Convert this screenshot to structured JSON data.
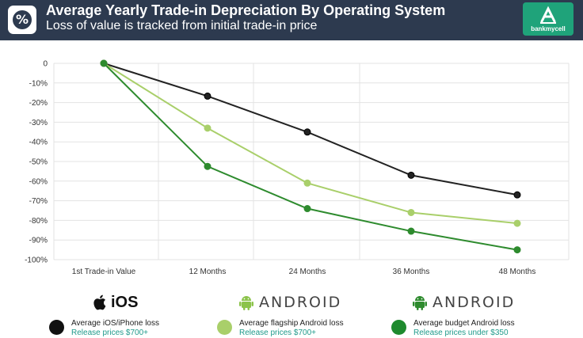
{
  "header": {
    "title": "Average Yearly Trade-in Depreciation By Operating System",
    "subtitle": "Loss of value is tracked from initial trade-in price",
    "brand": "bankmycell",
    "icon": "percent-icon"
  },
  "chart_data": {
    "type": "line",
    "categories": [
      "1st Trade-in Value",
      "12 Months",
      "24 Months",
      "36 Months",
      "48 Months"
    ],
    "y_tick_labels": [
      "0",
      "-10%",
      "-20%",
      "-30%",
      "-40%",
      "-50%",
      "-60%",
      "-70%",
      "-80%",
      "-90%",
      "-100%"
    ],
    "ylim": [
      -100,
      0
    ],
    "grid": true,
    "series": [
      {
        "name": "Average iOS/iPhone loss",
        "color": "#222222",
        "values": [
          0,
          -16.7,
          -35,
          -57,
          -67
        ]
      },
      {
        "name": "Average flagship Android loss",
        "color": "#a9cf6a",
        "values": [
          0,
          -33,
          -61,
          -76,
          -81.5
        ]
      },
      {
        "name": "Average budget Android loss",
        "color": "#2e8b2e",
        "values": [
          0,
          -52.5,
          -74,
          -85.5,
          -95
        ]
      }
    ]
  },
  "os_logos": [
    {
      "icon": "apple-icon",
      "label": "iOS"
    },
    {
      "icon": "android-robot-icon",
      "label": "ANDROID"
    },
    {
      "icon": "android-robot-icon",
      "label": "ANDROID"
    }
  ],
  "legend": [
    {
      "title": "Average iOS/iPhone loss",
      "sub": "Release prices $700+",
      "color": "#111111"
    },
    {
      "title": "Average flagship Android loss",
      "sub": "Release prices $700+",
      "color": "#a9cf6a"
    },
    {
      "title": "Average budget Android loss",
      "sub": "Release prices under $350",
      "color": "#1e8a2e"
    }
  ]
}
